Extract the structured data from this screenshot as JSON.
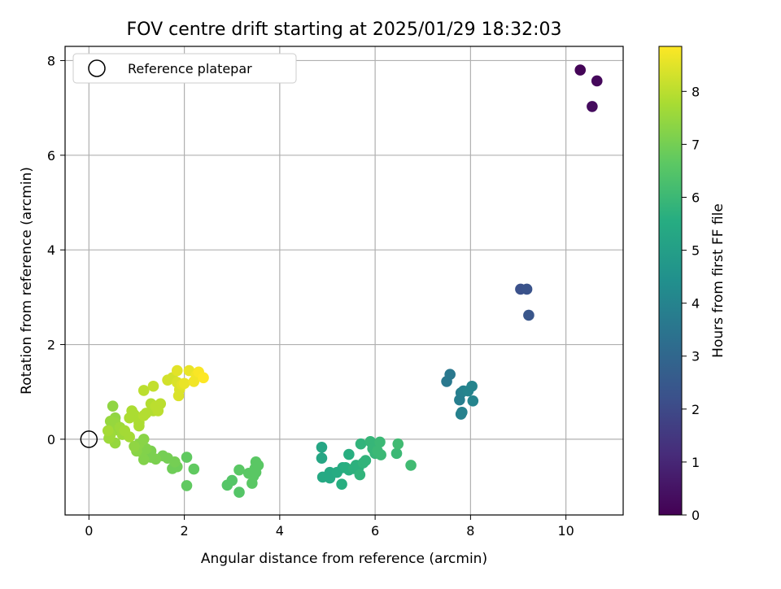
{
  "chart_data": {
    "type": "scatter",
    "title": "FOV centre drift starting at 2025/01/29 18:32:03",
    "xlabel": "Angular distance from reference (arcmin)",
    "ylabel": "Rotation from reference (arcmin)",
    "xlim": [
      -0.5,
      11.2
    ],
    "ylim": [
      -1.6,
      8.3
    ],
    "xticks": [
      "0",
      "2",
      "4",
      "6",
      "8",
      "10"
    ],
    "yticks": [
      "0",
      "2",
      "4",
      "6",
      "8"
    ],
    "grid": true,
    "legend": {
      "placement": "top-left",
      "entries": [
        "Reference platepar"
      ]
    },
    "reference_point": {
      "x": 0,
      "y": 0
    },
    "colorbar": {
      "label": "Hours from first FF file",
      "range": [
        0,
        8.85
      ],
      "ticks": [
        "0",
        "1",
        "2",
        "3",
        "4",
        "5",
        "6",
        "7",
        "8"
      ],
      "colormap": "viridis"
    },
    "points": [
      {
        "x": 10.3,
        "y": 7.8,
        "c": 0.1
      },
      {
        "x": 10.65,
        "y": 7.57,
        "c": 0.2
      },
      {
        "x": 10.55,
        "y": 7.03,
        "c": 0.3
      },
      {
        "x": 9.05,
        "y": 3.17,
        "c": 2.2
      },
      {
        "x": 9.18,
        "y": 3.17,
        "c": 2.3
      },
      {
        "x": 9.22,
        "y": 2.62,
        "c": 2.4
      },
      {
        "x": 7.5,
        "y": 1.22,
        "c": 3.6
      },
      {
        "x": 7.57,
        "y": 1.37,
        "c": 3.6
      },
      {
        "x": 7.77,
        "y": 0.83,
        "c": 3.8
      },
      {
        "x": 7.8,
        "y": 0.98,
        "c": 3.8
      },
      {
        "x": 7.85,
        "y": 1.02,
        "c": 3.9
      },
      {
        "x": 7.82,
        "y": 0.57,
        "c": 3.9
      },
      {
        "x": 7.8,
        "y": 0.53,
        "c": 3.9
      },
      {
        "x": 7.95,
        "y": 1.02,
        "c": 4.0
      },
      {
        "x": 8.03,
        "y": 1.12,
        "c": 4.0
      },
      {
        "x": 8.05,
        "y": 0.81,
        "c": 4.0
      },
      {
        "x": 4.88,
        "y": -0.17,
        "c": 5.3
      },
      {
        "x": 4.88,
        "y": -0.4,
        "c": 5.3
      },
      {
        "x": 4.9,
        "y": -0.8,
        "c": 5.4
      },
      {
        "x": 5.05,
        "y": -0.82,
        "c": 5.4
      },
      {
        "x": 5.05,
        "y": -0.7,
        "c": 5.4
      },
      {
        "x": 5.2,
        "y": -0.7,
        "c": 5.5
      },
      {
        "x": 5.32,
        "y": -0.6,
        "c": 5.5
      },
      {
        "x": 5.38,
        "y": -0.6,
        "c": 5.6
      },
      {
        "x": 5.45,
        "y": -0.65,
        "c": 5.6
      },
      {
        "x": 5.3,
        "y": -0.95,
        "c": 5.6
      },
      {
        "x": 5.45,
        "y": -0.32,
        "c": 5.6
      },
      {
        "x": 5.55,
        "y": -0.62,
        "c": 5.7
      },
      {
        "x": 5.6,
        "y": -0.55,
        "c": 5.7
      },
      {
        "x": 5.65,
        "y": -0.6,
        "c": 5.7
      },
      {
        "x": 5.68,
        "y": -0.75,
        "c": 5.8
      },
      {
        "x": 5.7,
        "y": -0.1,
        "c": 5.8
      },
      {
        "x": 5.75,
        "y": -0.5,
        "c": 5.8
      },
      {
        "x": 5.8,
        "y": -0.45,
        "c": 5.8
      },
      {
        "x": 5.9,
        "y": -0.05,
        "c": 5.9
      },
      {
        "x": 5.95,
        "y": -0.2,
        "c": 5.9
      },
      {
        "x": 6.0,
        "y": -0.3,
        "c": 5.9
      },
      {
        "x": 6.05,
        "y": -0.25,
        "c": 6.0
      },
      {
        "x": 6.1,
        "y": -0.06,
        "c": 6.0
      },
      {
        "x": 6.12,
        "y": -0.33,
        "c": 6.0
      },
      {
        "x": 6.45,
        "y": -0.3,
        "c": 6.0
      },
      {
        "x": 6.48,
        "y": -0.1,
        "c": 6.1
      },
      {
        "x": 6.75,
        "y": -0.55,
        "c": 6.1
      },
      {
        "x": 2.05,
        "y": -0.38,
        "c": 6.7
      },
      {
        "x": 2.2,
        "y": -0.63,
        "c": 6.7
      },
      {
        "x": 2.05,
        "y": -0.98,
        "c": 6.7
      },
      {
        "x": 2.9,
        "y": -0.97,
        "c": 6.5
      },
      {
        "x": 3.0,
        "y": -0.87,
        "c": 6.5
      },
      {
        "x": 3.15,
        "y": -1.12,
        "c": 6.5
      },
      {
        "x": 3.15,
        "y": -0.65,
        "c": 6.6
      },
      {
        "x": 3.35,
        "y": -0.72,
        "c": 6.6
      },
      {
        "x": 3.42,
        "y": -0.93,
        "c": 6.6
      },
      {
        "x": 3.45,
        "y": -0.78,
        "c": 6.6
      },
      {
        "x": 3.48,
        "y": -0.62,
        "c": 6.6
      },
      {
        "x": 3.5,
        "y": -0.48,
        "c": 6.6
      },
      {
        "x": 3.55,
        "y": -0.55,
        "c": 6.6
      },
      {
        "x": 3.5,
        "y": -0.7,
        "c": 6.6
      },
      {
        "x": 1.85,
        "y": -0.58,
        "c": 6.9
      },
      {
        "x": 1.75,
        "y": -0.62,
        "c": 6.9
      },
      {
        "x": 1.8,
        "y": -0.48,
        "c": 7.0
      },
      {
        "x": 1.65,
        "y": -0.4,
        "c": 7.0
      },
      {
        "x": 1.55,
        "y": -0.35,
        "c": 7.0
      },
      {
        "x": 1.4,
        "y": -0.42,
        "c": 7.1
      },
      {
        "x": 1.3,
        "y": -0.38,
        "c": 7.1
      },
      {
        "x": 1.3,
        "y": -0.25,
        "c": 7.1
      },
      {
        "x": 1.2,
        "y": -0.2,
        "c": 7.2
      },
      {
        "x": 1.15,
        "y": -0.43,
        "c": 7.2
      },
      {
        "x": 1.1,
        "y": -0.27,
        "c": 7.2
      },
      {
        "x": 1.05,
        "y": -0.1,
        "c": 7.3
      },
      {
        "x": 1.15,
        "y": 0.0,
        "c": 7.3
      },
      {
        "x": 1.0,
        "y": -0.25,
        "c": 7.3
      },
      {
        "x": 0.95,
        "y": -0.15,
        "c": 7.4
      },
      {
        "x": 0.5,
        "y": 0.7,
        "c": 7.4
      },
      {
        "x": 0.55,
        "y": 0.45,
        "c": 7.4
      },
      {
        "x": 0.55,
        "y": 0.35,
        "c": 7.5
      },
      {
        "x": 0.45,
        "y": 0.38,
        "c": 7.5
      },
      {
        "x": 0.6,
        "y": 0.2,
        "c": 7.5
      },
      {
        "x": 0.55,
        "y": -0.08,
        "c": 7.5
      },
      {
        "x": 0.45,
        "y": 0.1,
        "c": 7.6
      },
      {
        "x": 0.42,
        "y": 0.02,
        "c": 7.6
      },
      {
        "x": 0.65,
        "y": 0.25,
        "c": 7.6
      },
      {
        "x": 0.7,
        "y": 0.1,
        "c": 7.6
      },
      {
        "x": 0.75,
        "y": 0.18,
        "c": 7.7
      },
      {
        "x": 0.85,
        "y": 0.05,
        "c": 7.7
      },
      {
        "x": 0.4,
        "y": 0.18,
        "c": 7.7
      },
      {
        "x": 0.95,
        "y": 0.52,
        "c": 7.8
      },
      {
        "x": 0.9,
        "y": 0.6,
        "c": 7.8
      },
      {
        "x": 0.85,
        "y": 0.45,
        "c": 7.8
      },
      {
        "x": 1.05,
        "y": 0.35,
        "c": 7.8
      },
      {
        "x": 1.05,
        "y": 0.28,
        "c": 7.8
      },
      {
        "x": 1.15,
        "y": 0.5,
        "c": 7.9
      },
      {
        "x": 1.2,
        "y": 0.55,
        "c": 7.9
      },
      {
        "x": 1.3,
        "y": 0.75,
        "c": 7.9
      },
      {
        "x": 1.35,
        "y": 0.6,
        "c": 7.9
      },
      {
        "x": 1.4,
        "y": 0.7,
        "c": 8.0
      },
      {
        "x": 1.5,
        "y": 0.75,
        "c": 8.0
      },
      {
        "x": 1.45,
        "y": 0.6,
        "c": 8.0
      },
      {
        "x": 1.15,
        "y": 1.03,
        "c": 8.0
      },
      {
        "x": 1.35,
        "y": 1.12,
        "c": 8.1
      },
      {
        "x": 1.65,
        "y": 1.25,
        "c": 8.3
      },
      {
        "x": 1.75,
        "y": 1.3,
        "c": 8.3
      },
      {
        "x": 1.85,
        "y": 1.2,
        "c": 8.4
      },
      {
        "x": 1.9,
        "y": 1.05,
        "c": 8.4
      },
      {
        "x": 1.88,
        "y": 0.92,
        "c": 8.4
      },
      {
        "x": 1.95,
        "y": 1.15,
        "c": 8.5
      },
      {
        "x": 1.85,
        "y": 1.45,
        "c": 8.5
      },
      {
        "x": 2.0,
        "y": 1.18,
        "c": 8.6
      },
      {
        "x": 2.1,
        "y": 1.45,
        "c": 8.6
      },
      {
        "x": 2.2,
        "y": 1.22,
        "c": 8.7
      },
      {
        "x": 2.25,
        "y": 1.35,
        "c": 8.7
      },
      {
        "x": 2.3,
        "y": 1.42,
        "c": 8.8
      },
      {
        "x": 2.4,
        "y": 1.3,
        "c": 8.85
      }
    ]
  }
}
